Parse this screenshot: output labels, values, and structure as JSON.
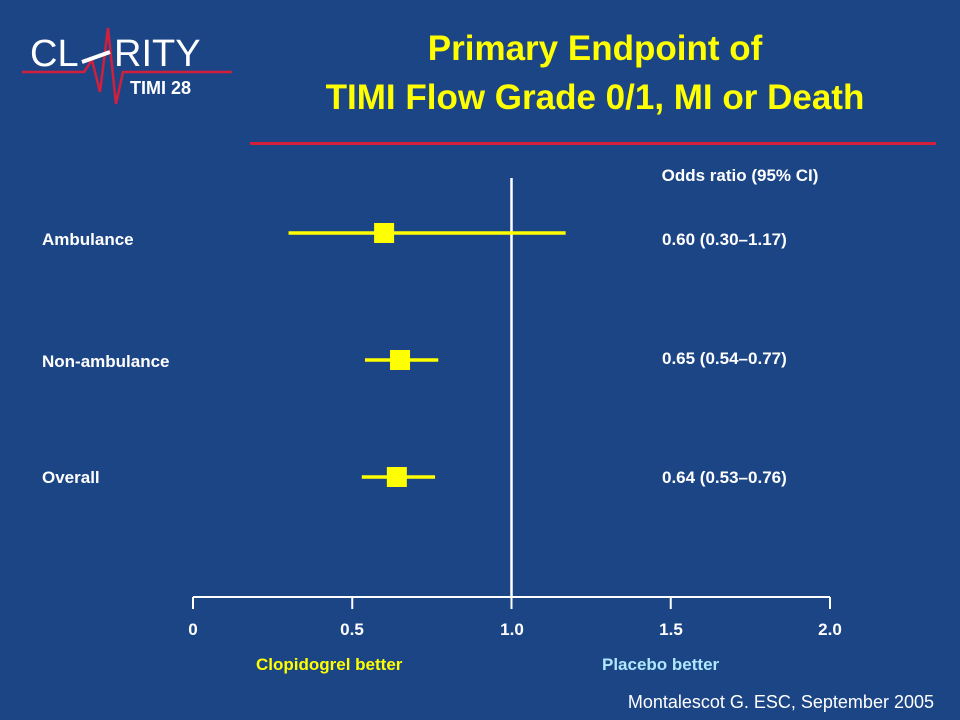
{
  "logo": {
    "text_left": "CL",
    "text_right": "RITY",
    "subtext": "TIMI 28"
  },
  "title": {
    "line1": "Primary Endpoint of",
    "line2": "TIMI Flow Grade 0/1, MI or Death"
  },
  "column_header": "Odds ratio (95% CI)",
  "direction_labels": {
    "left": "Clopidogrel better",
    "right": "Placebo better"
  },
  "citation": "Montalescot G. ESC, September 2005",
  "colors": {
    "background": "#1c4586",
    "title": "#ffff00",
    "rule": "#d21f3c",
    "marker": "#ffff00",
    "left_label": "#ffff00",
    "right_label": "#aee8ff",
    "axis": "#ffffff"
  },
  "chart_data": {
    "type": "forest",
    "xlim": [
      0,
      2.0
    ],
    "reference_line": 1.0,
    "ticks": [
      0,
      0.5,
      1.0,
      1.5,
      2.0
    ],
    "tick_labels": [
      "0",
      "0.5",
      "1.0",
      "1.5",
      "2.0"
    ],
    "rows": [
      {
        "label": "Ambulance",
        "or": 0.6,
        "lower": 0.3,
        "upper": 1.17,
        "text": "0.60 (0.30–1.17)"
      },
      {
        "label": "Non-ambulance",
        "or": 0.65,
        "lower": 0.54,
        "upper": 0.77,
        "text": "0.65 (0.54–0.77)"
      },
      {
        "label": "Overall",
        "or": 0.64,
        "lower": 0.53,
        "upper": 0.76,
        "text": "0.64 (0.53–0.76)"
      }
    ]
  }
}
